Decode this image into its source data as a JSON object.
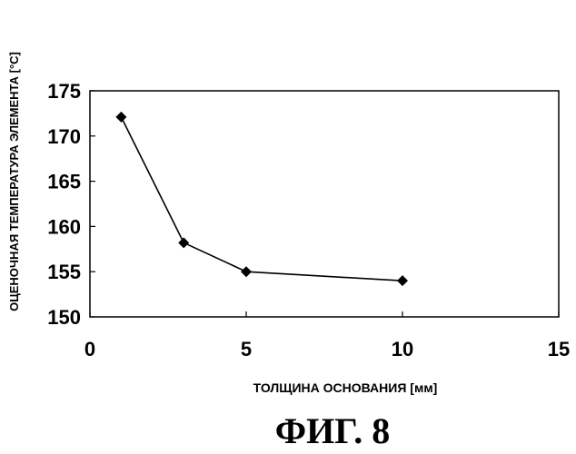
{
  "chart_data": {
    "type": "line",
    "x": [
      1,
      3,
      5,
      10
    ],
    "series": [
      {
        "values": [
          172.1,
          158.2,
          155.0,
          154.0
        ]
      }
    ],
    "xlabel": "ТОЛЩИНА ОСНОВАНИЯ [мм]",
    "ylabel": "ОЦЕНОЧНАЯ ТЕМПЕРАТУРА ЭЛЕМЕНТА [°C]",
    "xlim": [
      0,
      15
    ],
    "ylim": [
      150,
      175
    ],
    "xticks": [
      0,
      5,
      10,
      15
    ],
    "yticks": [
      150,
      155,
      160,
      165,
      170,
      175
    ],
    "grid": false,
    "marker": "diamond"
  },
  "caption": "ФИГ. 8"
}
